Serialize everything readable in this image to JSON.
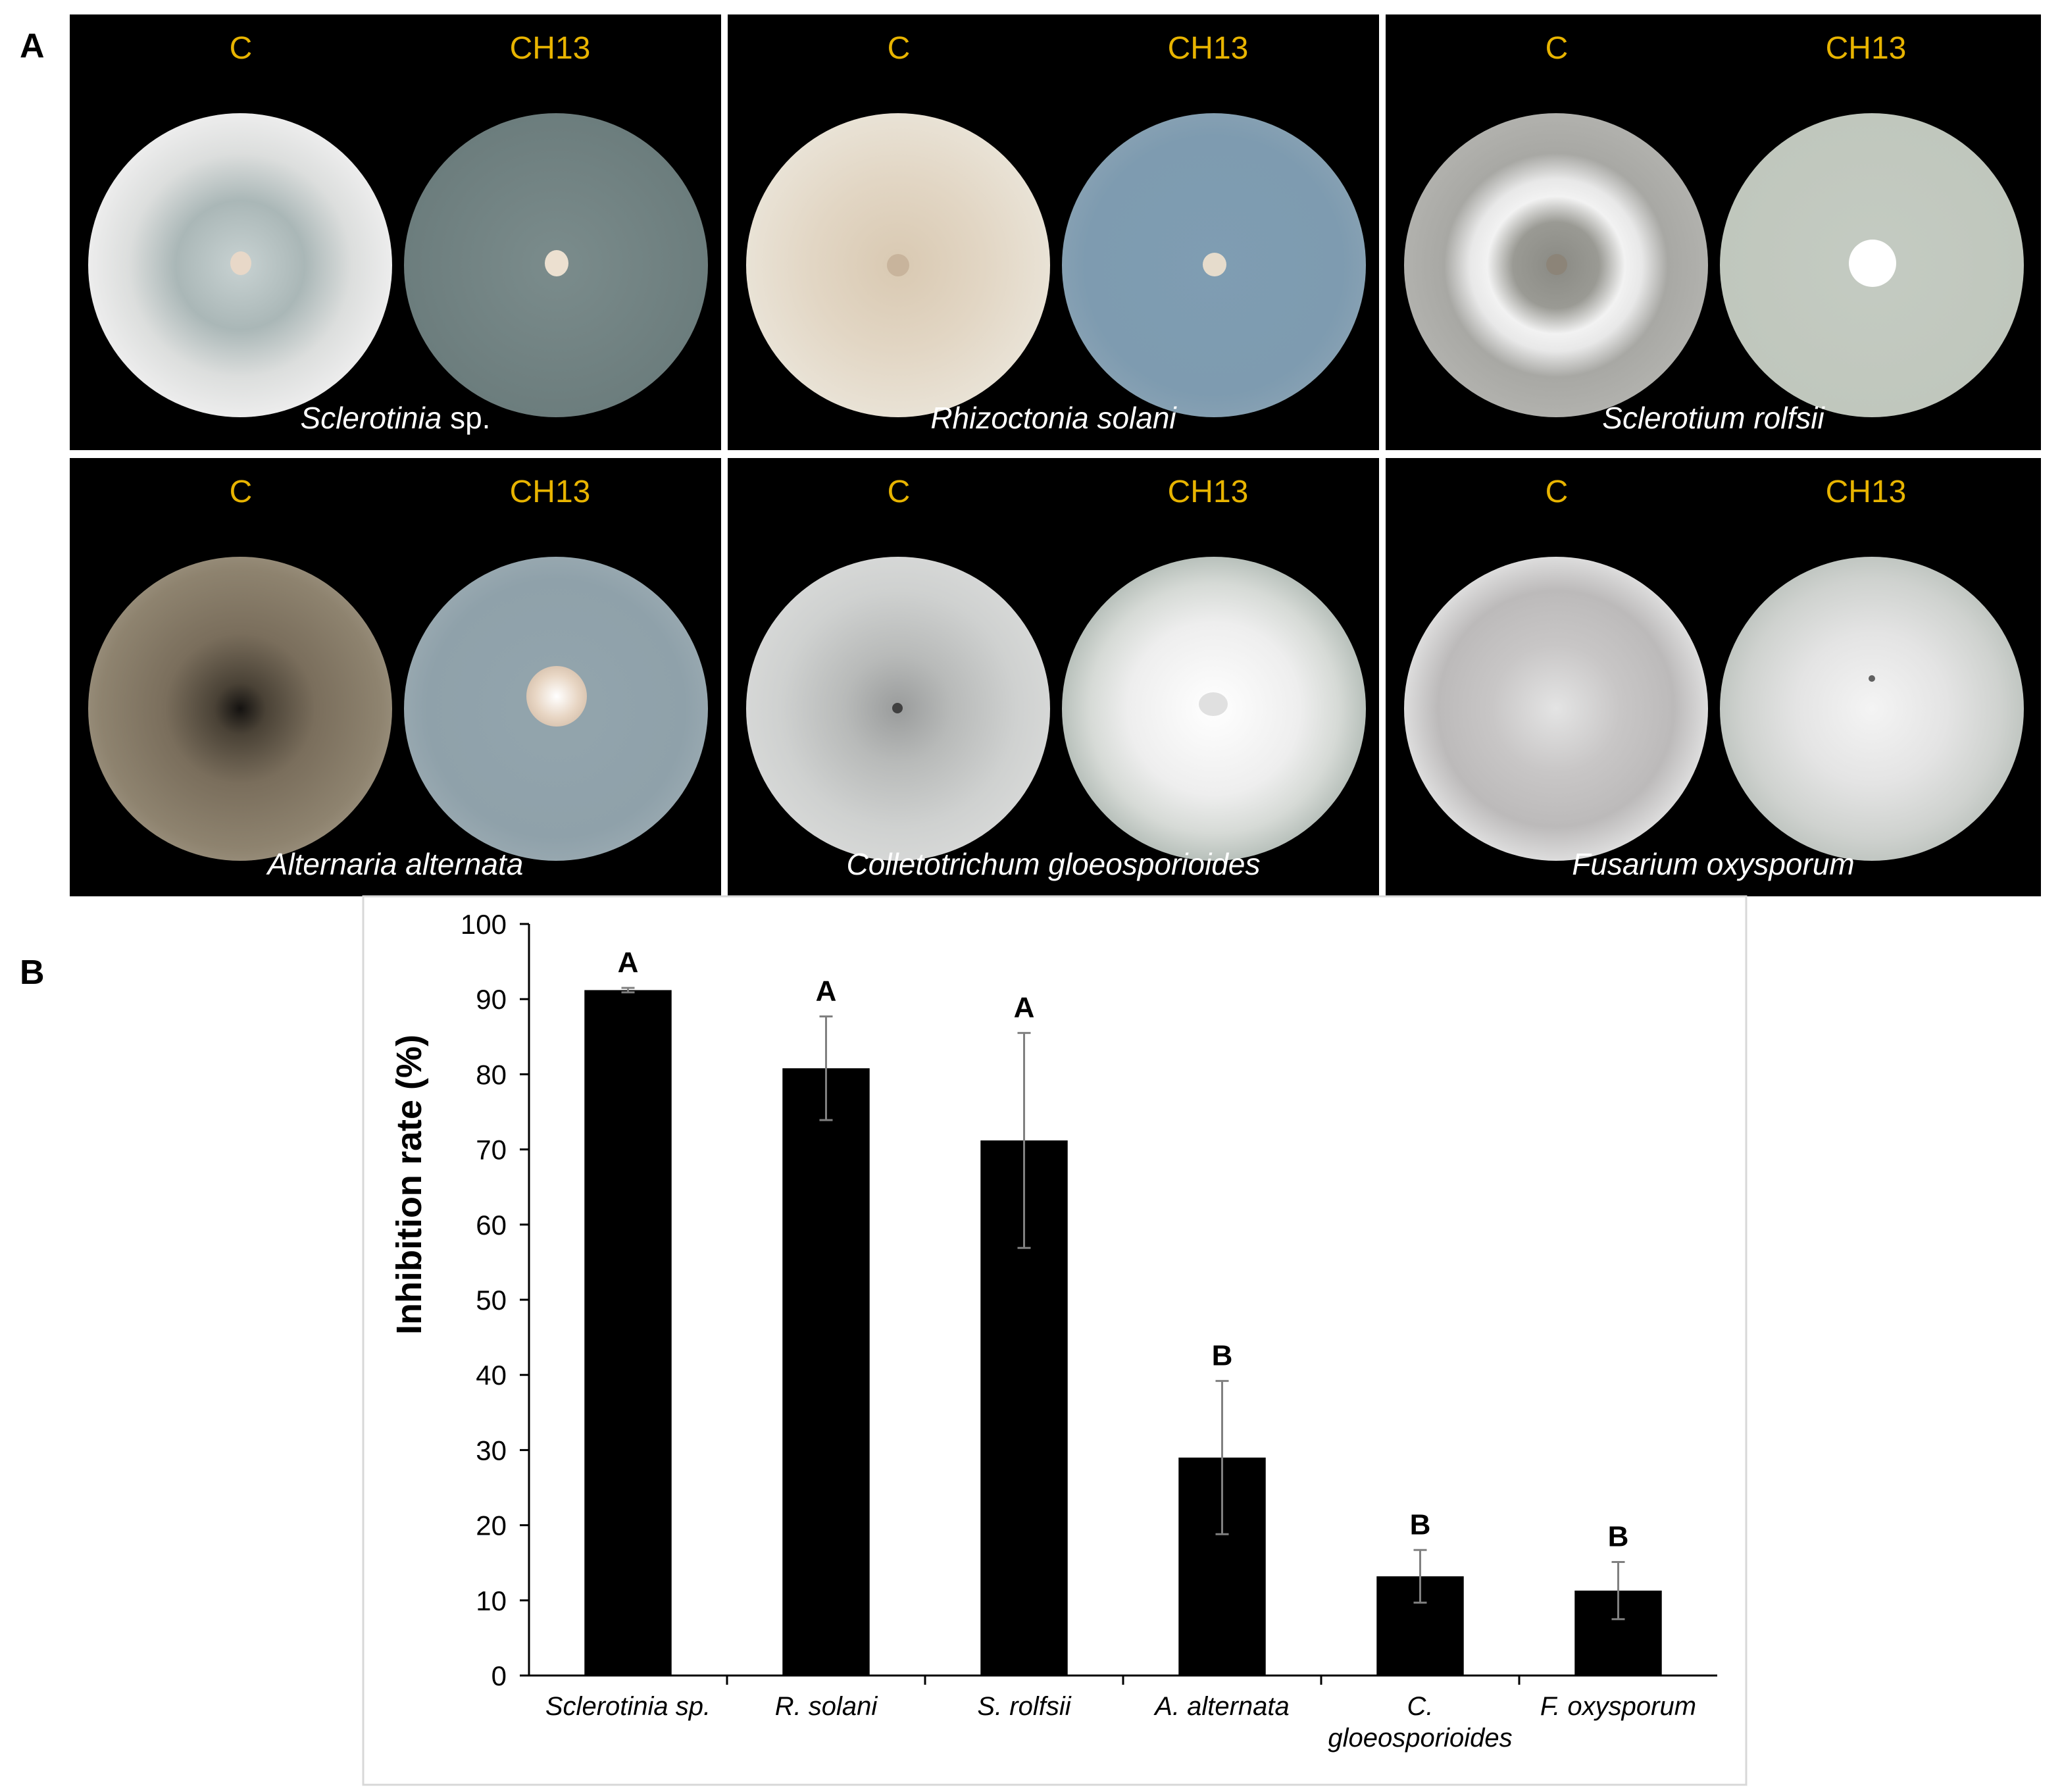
{
  "panels": {
    "a": "A",
    "b": "B"
  },
  "photos": [
    {
      "control_label": "C",
      "treatment_label": "CH13",
      "species": "Sclerotinia",
      "species_suffix": " sp."
    },
    {
      "control_label": "C",
      "treatment_label": "CH13",
      "species": "Rhizoctonia solani",
      "species_suffix": ""
    },
    {
      "control_label": "C",
      "treatment_label": "CH13",
      "species": "Sclerotium rolfsii",
      "species_suffix": ""
    },
    {
      "control_label": "C",
      "treatment_label": "CH13",
      "species": "Alternaria alternata",
      "species_suffix": ""
    },
    {
      "control_label": "C",
      "treatment_label": "CH13",
      "species": "Colletotrichum gloeosporioides",
      "species_suffix": ""
    },
    {
      "control_label": "C",
      "treatment_label": "CH13",
      "species": "Fusarium oxysporum",
      "species_suffix": ""
    }
  ],
  "chart_data": {
    "type": "bar",
    "title": "",
    "xlabel": "",
    "ylabel": "Inhibition rate (%)",
    "ylim": [
      0,
      100
    ],
    "yticks": [
      0,
      10,
      20,
      30,
      40,
      50,
      60,
      70,
      80,
      90,
      100
    ],
    "grid": false,
    "categories": [
      "Sclerotinia sp.",
      "R. solani",
      "S. rolfsii",
      "A. alternata",
      "C. gloeosporioides",
      "F. oxysporum"
    ],
    "category_lines": [
      [
        "Sclerotinia sp."
      ],
      [
        "R. solani"
      ],
      [
        "S. rolfsii"
      ],
      [
        "A. alternata"
      ],
      [
        "C.",
        "gloeosporioides"
      ],
      [
        "F. oxysporum"
      ]
    ],
    "values": [
      91.2,
      80.8,
      71.2,
      29.0,
      13.2,
      11.3
    ],
    "error": [
      0.3,
      6.9,
      14.3,
      10.2,
      3.5,
      3.8
    ],
    "significance_letters": [
      "A",
      "A",
      "A",
      "B",
      "B",
      "B"
    ],
    "colors": {
      "bar": "#000000",
      "error_bar": "#808080"
    }
  }
}
